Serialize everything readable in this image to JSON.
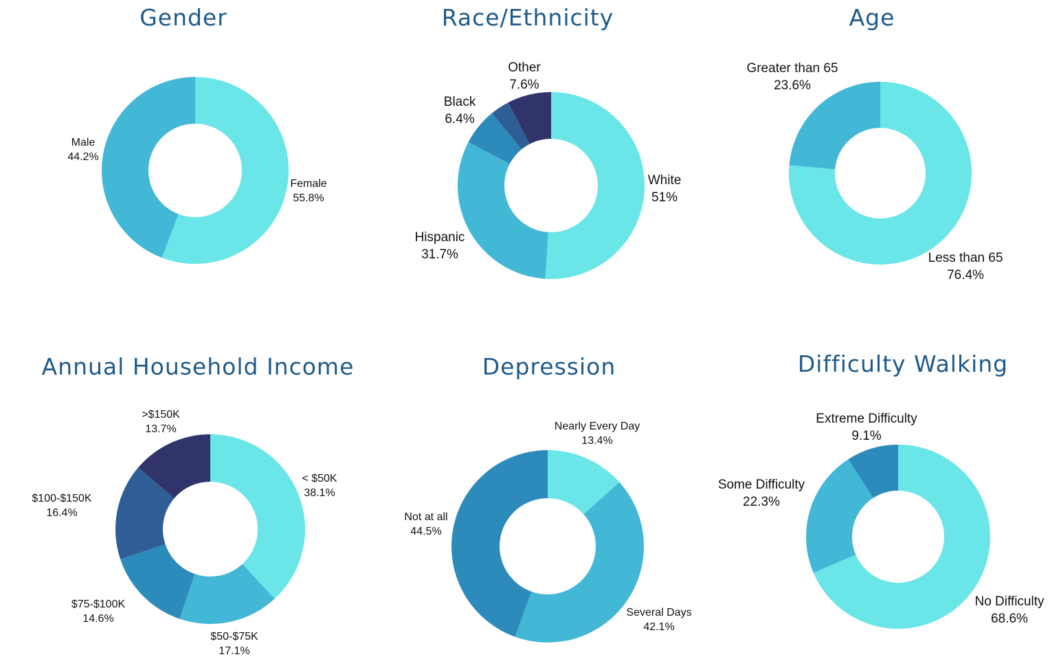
{
  "colors": {
    "title": "#1f5a8a",
    "palette": [
      "#6ae5e8",
      "#42b7d6",
      "#2d8bbb",
      "#2f5e97",
      "#31336b"
    ]
  },
  "chart_data": [
    {
      "id": "gender",
      "type": "pie",
      "title": "Gender",
      "slices": [
        {
          "label": "Female",
          "value": 55.8,
          "display": "55.8%",
          "color": "#6ae5e8"
        },
        {
          "label": "Male",
          "value": 44.2,
          "display": "44.2%",
          "color": "#42b7d6"
        }
      ]
    },
    {
      "id": "race",
      "type": "pie",
      "title": "Race/Ethnicity",
      "slices": [
        {
          "label": "White",
          "value": 51,
          "display": "51%",
          "color": "#6ae5e8"
        },
        {
          "label": "Hispanic",
          "value": 31.7,
          "display": "31.7%",
          "color": "#42b7d6"
        },
        {
          "label": "Black",
          "value": 6.4,
          "display": "6.4%",
          "color": "#2d8bbb"
        },
        {
          "label": "",
          "value": 3.3,
          "display": "",
          "color": "#2f5e97"
        },
        {
          "label": "Other",
          "value": 7.6,
          "display": "7.6%",
          "color": "#31336b"
        }
      ]
    },
    {
      "id": "age",
      "type": "pie",
      "title": "Age",
      "slices": [
        {
          "label": "Less than 65",
          "value": 76.4,
          "display": "76.4%",
          "color": "#6ae5e8"
        },
        {
          "label": "Greater than 65",
          "value": 23.6,
          "display": "23.6%",
          "color": "#42b7d6"
        }
      ]
    },
    {
      "id": "income",
      "type": "pie",
      "title": "Annual Household Income",
      "slices": [
        {
          "label": "< $50K",
          "value": 38.1,
          "display": "38.1%",
          "color": "#6ae5e8"
        },
        {
          "label": "$50-$75K",
          "value": 17.1,
          "display": "17.1%",
          "color": "#42b7d6"
        },
        {
          "label": "$75-$100K",
          "value": 14.6,
          "display": "14.6%",
          "color": "#2d8bbb"
        },
        {
          "label": "$100-$150K",
          "value": 16.4,
          "display": "16.4%",
          "color": "#2f5e97"
        },
        {
          "label": ">$150K",
          "value": 13.7,
          "display": "13.7%",
          "color": "#31336b"
        }
      ]
    },
    {
      "id": "depression",
      "type": "pie",
      "title": "Depression",
      "slices": [
        {
          "label": "Nearly Every Day",
          "value": 13.4,
          "display": "13.4%",
          "color": "#6ae5e8"
        },
        {
          "label": "Several Days",
          "value": 42.1,
          "display": "42.1%",
          "color": "#42b7d6"
        },
        {
          "label": "Not at all",
          "value": 44.5,
          "display": "44.5%",
          "color": "#2d8bbb"
        }
      ]
    },
    {
      "id": "walking",
      "type": "pie",
      "title": "Difficulty Walking",
      "slices": [
        {
          "label": "No Difficulty",
          "value": 68.6,
          "display": "68.6%",
          "color": "#6ae5e8"
        },
        {
          "label": "Some Difficulty",
          "value": 22.3,
          "display": "22.3%",
          "color": "#42b7d6"
        },
        {
          "label": "Extreme Difficulty",
          "value": 9.1,
          "display": "9.1%",
          "color": "#2d8bbb"
        }
      ]
    }
  ]
}
